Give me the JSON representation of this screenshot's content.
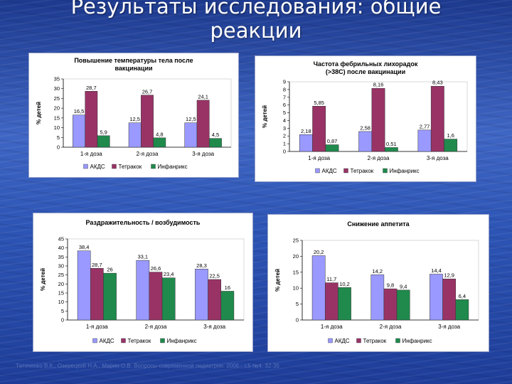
{
  "slide": {
    "title_line1": "Результаты исследования: общие",
    "title_line2": "реакции",
    "footer": "Таточенко В.К., Озерецкий Н.А., Марин О.В. Вопросы современной педиатрии. 2006 - т.5 №4. 32-36"
  },
  "colors": {
    "АКДС": "#9999ff",
    "Тетракок": "#993366",
    "Инфанрикс": "#1f8a4c"
  },
  "chart_data": [
    {
      "type": "bar",
      "title": "Повышение температуры тела после вакцинации",
      "ylabel": "% детей",
      "categories": [
        "1-я доза",
        "2-я доза",
        "3-я доза"
      ],
      "ylim": [
        0,
        35
      ],
      "yticks": [
        "0",
        "5",
        "10",
        "15",
        "20",
        "25",
        "30",
        "35"
      ],
      "legend_position": "bottom",
      "series": [
        {
          "name": "АКДС",
          "values": [
            16.5,
            12.5,
            12.5
          ],
          "labels": [
            "16,5",
            "12,5",
            "12,5"
          ]
        },
        {
          "name": "Тетракок",
          "values": [
            28.7,
            26.7,
            24.1
          ],
          "labels": [
            "28,7",
            "26,7",
            "24,1"
          ]
        },
        {
          "name": "Инфанрикс",
          "values": [
            5.9,
            4.8,
            4.5
          ],
          "labels": [
            "5,9",
            "4,8",
            "4,5"
          ]
        }
      ]
    },
    {
      "type": "bar",
      "title": "Частота фебрильных лихорадок (>38С) после вакцинации",
      "ylabel": "% детей",
      "categories": [
        "1-я доза",
        "2-я доза",
        "3-я доза"
      ],
      "ylim": [
        0,
        9
      ],
      "yticks": [
        "0",
        "1",
        "2",
        "3",
        "4",
        "5",
        "6",
        "7",
        "8",
        "9"
      ],
      "legend_position": "bottom",
      "series": [
        {
          "name": "АКДС",
          "values": [
            2.18,
            2.58,
            2.77
          ],
          "labels": [
            "2,18",
            "2,58",
            "2,77"
          ]
        },
        {
          "name": "Тетракок",
          "values": [
            5.85,
            8.16,
            8.43
          ],
          "labels": [
            "5,85",
            "8,16",
            "8,43"
          ]
        },
        {
          "name": "Инфанрикс",
          "values": [
            0.87,
            0.51,
            1.6
          ],
          "labels": [
            "0,87",
            "0,51",
            "1,6"
          ]
        }
      ]
    },
    {
      "type": "bar",
      "title": "Раздражительность / возбудимость",
      "ylabel": "% детей",
      "categories": [
        "1-я доза",
        "2-я доза",
        "3-я доза"
      ],
      "ylim": [
        0,
        45
      ],
      "yticks": [
        "0",
        "5",
        "10",
        "15",
        "20",
        "25",
        "30",
        "35",
        "40",
        "45"
      ],
      "legend_position": "bottom",
      "series": [
        {
          "name": "АКДС",
          "values": [
            38.4,
            33.1,
            28.3
          ],
          "labels": [
            "38,4",
            "33,1",
            "28,3"
          ]
        },
        {
          "name": "Тетракок",
          "values": [
            28.7,
            26.6,
            22.5
          ],
          "labels": [
            "28,7",
            "26,6",
            "22,5"
          ]
        },
        {
          "name": "Инфанрикс",
          "values": [
            26,
            23.4,
            16
          ],
          "labels": [
            "26",
            "23,4",
            "16"
          ]
        }
      ]
    },
    {
      "type": "bar",
      "title": "Снижение аппетита",
      "ylabel": "% детей",
      "categories": [
        "1-я доза",
        "2-я доза",
        "3-я доза"
      ],
      "ylim": [
        0,
        25
      ],
      "yticks": [
        "0",
        "5",
        "10",
        "15",
        "20",
        "25"
      ],
      "legend_position": "bottom",
      "series": [
        {
          "name": "АКДС",
          "values": [
            20.2,
            14.2,
            14.4
          ],
          "labels": [
            "20,2",
            "14,2",
            "14,4"
          ]
        },
        {
          "name": "Тетракок",
          "values": [
            11.7,
            9.8,
            12.9
          ],
          "labels": [
            "11,7",
            "9,8",
            "12,9"
          ]
        },
        {
          "name": "Инфанрикс",
          "values": [
            10.2,
            9.4,
            6.4
          ],
          "labels": [
            "10,2",
            "9,4",
            "6,4"
          ]
        }
      ]
    }
  ]
}
